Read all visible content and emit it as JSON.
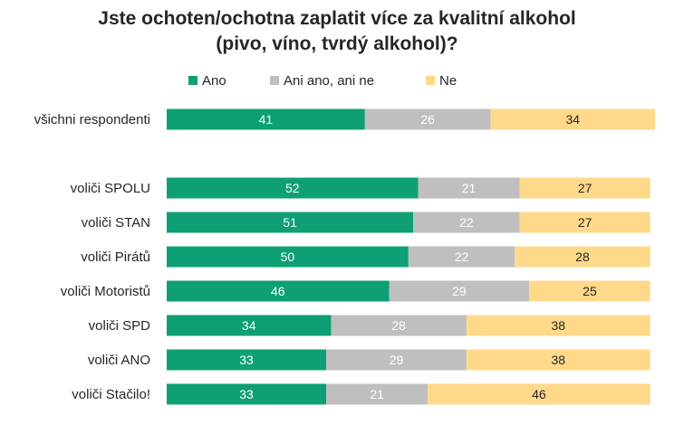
{
  "chart_data": {
    "type": "bar",
    "orientation": "horizontal",
    "stacked": true,
    "title_line1": "Jste ochoten/ochotna zaplatit více za kvalitní alkohol",
    "title_line2": "(pivo, víno, tvrdý alkohol)?",
    "legend_position": "top",
    "grid": false,
    "xlim": [
      0,
      101
    ],
    "categories": [
      "všichni respondenti",
      "voliči SPOLU",
      "voliči STAN",
      "voliči Pirátů",
      "voliči Motoristů",
      "voliči SPD",
      "voliči ANO",
      "voliči Stačilo!"
    ],
    "series": [
      {
        "name": "Ano",
        "color": "#0e9f74",
        "label_color": "#ffffff",
        "values": [
          41,
          52,
          51,
          50,
          46,
          34,
          33,
          33
        ]
      },
      {
        "name": "Ani ano, ani ne",
        "color": "#bfbfbf",
        "label_color": "#ffffff",
        "values": [
          26,
          21,
          22,
          22,
          29,
          28,
          29,
          21
        ]
      },
      {
        "name": "Ne",
        "color": "#ffd98a",
        "label_color": "#262626",
        "values": [
          34,
          27,
          27,
          28,
          25,
          38,
          38,
          46
        ]
      }
    ]
  }
}
